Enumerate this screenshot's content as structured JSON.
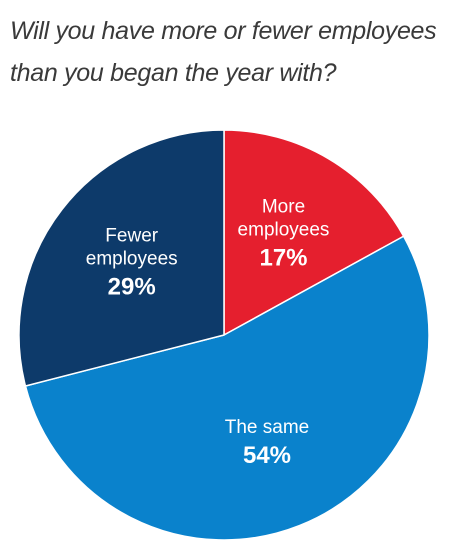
{
  "title": {
    "line1": "Will you have more or fewer employees",
    "line2": "than you began the year with?"
  },
  "chart_data": {
    "type": "pie",
    "title": "Will you have more or fewer employees than you began the year with?",
    "slices": [
      {
        "label_lines": [
          "More",
          "employees"
        ],
        "value": 17,
        "value_label": "17%",
        "color": "#e51f2e"
      },
      {
        "label_lines": [
          "The same"
        ],
        "value": 54,
        "value_label": "54%",
        "color": "#0a82cc"
      },
      {
        "label_lines": [
          "Fewer",
          "employees"
        ],
        "value": 29,
        "value_label": "29%",
        "color": "#0d3a6a"
      }
    ],
    "start_angle_deg": 0,
    "direction": "clockwise",
    "slice_border_color": "#ffffff",
    "legend": "none"
  }
}
